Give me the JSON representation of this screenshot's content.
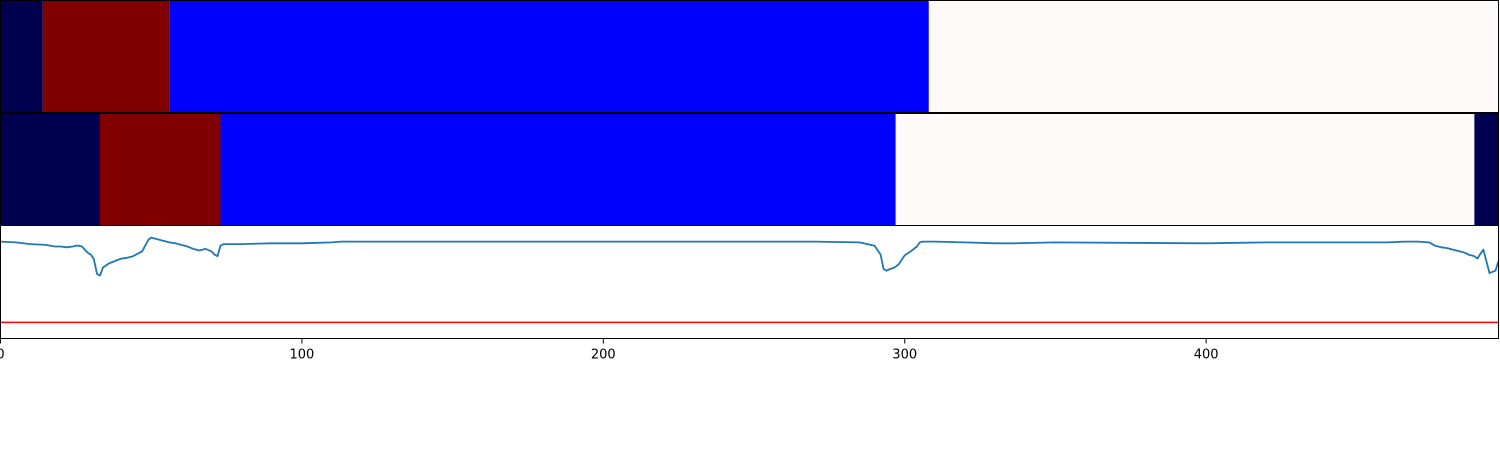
{
  "chart_data": {
    "type": "line",
    "title": "",
    "xlabel": "",
    "ylabel": "",
    "xlim": [
      0,
      497
    ],
    "ylim": [
      -1.2,
      0.2
    ],
    "x_ticks": [
      0,
      100,
      200,
      300,
      400
    ],
    "grid": false,
    "legend": "none",
    "segment_bands": [
      {
        "name": "",
        "segments": [
          {
            "start": 0,
            "end": 14,
            "color": "#000050"
          },
          {
            "start": 14,
            "end": 56,
            "color": "#800000"
          },
          {
            "start": 56,
            "end": 308,
            "color": "#0000ff"
          },
          {
            "start": 308,
            "end": 497,
            "color": "#fffafa"
          }
        ]
      },
      {
        "name": "",
        "segments": [
          {
            "start": 0,
            "end": 33,
            "color": "#000050"
          },
          {
            "start": 33,
            "end": 73,
            "color": "#800000"
          },
          {
            "start": 73,
            "end": 297,
            "color": "#0000ff"
          },
          {
            "start": 297,
            "end": 489,
            "color": "#fffafa"
          },
          {
            "start": 489,
            "end": 497,
            "color": "#000050"
          }
        ]
      }
    ],
    "series": [
      {
        "name": "",
        "color": "#1f77b4",
        "x": [
          0,
          5,
          10,
          15,
          18,
          20,
          22,
          24,
          25,
          26,
          27,
          28,
          29,
          30,
          31,
          32,
          33,
          34,
          36,
          38,
          40,
          42,
          44,
          46,
          47,
          48,
          49,
          50,
          56,
          58,
          60,
          62,
          64,
          66,
          68,
          70,
          71,
          72,
          73,
          74,
          80,
          90,
          100,
          110,
          113,
          120,
          270,
          285,
          290,
          292,
          293,
          294,
          295,
          296,
          297,
          298,
          300,
          302,
          304,
          305,
          306,
          310,
          320,
          330,
          336,
          350,
          400,
          420,
          440,
          460,
          466,
          470,
          474,
          476,
          478,
          480,
          482,
          484,
          486,
          487,
          488,
          489,
          490,
          491,
          492,
          494,
          496,
          497
        ],
        "y": [
          0.0,
          -0.01,
          -0.03,
          -0.04,
          -0.06,
          -0.06,
          -0.07,
          -0.06,
          -0.05,
          -0.05,
          -0.06,
          -0.1,
          -0.14,
          -0.16,
          -0.22,
          -0.4,
          -0.42,
          -0.32,
          -0.27,
          -0.24,
          -0.21,
          -0.2,
          -0.18,
          -0.14,
          -0.12,
          -0.05,
          0.02,
          0.05,
          -0.01,
          -0.02,
          -0.04,
          -0.06,
          -0.09,
          -0.11,
          -0.09,
          -0.12,
          -0.16,
          -0.18,
          -0.05,
          -0.03,
          -0.03,
          -0.02,
          -0.02,
          -0.01,
          0.0,
          0.0,
          0.0,
          -0.01,
          -0.05,
          -0.16,
          -0.34,
          -0.36,
          -0.34,
          -0.33,
          -0.31,
          -0.28,
          -0.17,
          -0.12,
          -0.06,
          -0.01,
          0.0,
          0.0,
          -0.01,
          -0.02,
          -0.02,
          -0.01,
          -0.02,
          -0.01,
          -0.01,
          -0.01,
          0.0,
          0.0,
          -0.01,
          -0.05,
          -0.07,
          -0.08,
          -0.1,
          -0.12,
          -0.14,
          -0.16,
          -0.17,
          -0.18,
          -0.21,
          -0.15,
          -0.1,
          -0.39,
          -0.36,
          -0.24
        ]
      },
      {
        "name": "",
        "color": "#ff0000",
        "x": [
          0,
          497
        ],
        "y": [
          -1.0,
          -1.0
        ]
      }
    ]
  }
}
